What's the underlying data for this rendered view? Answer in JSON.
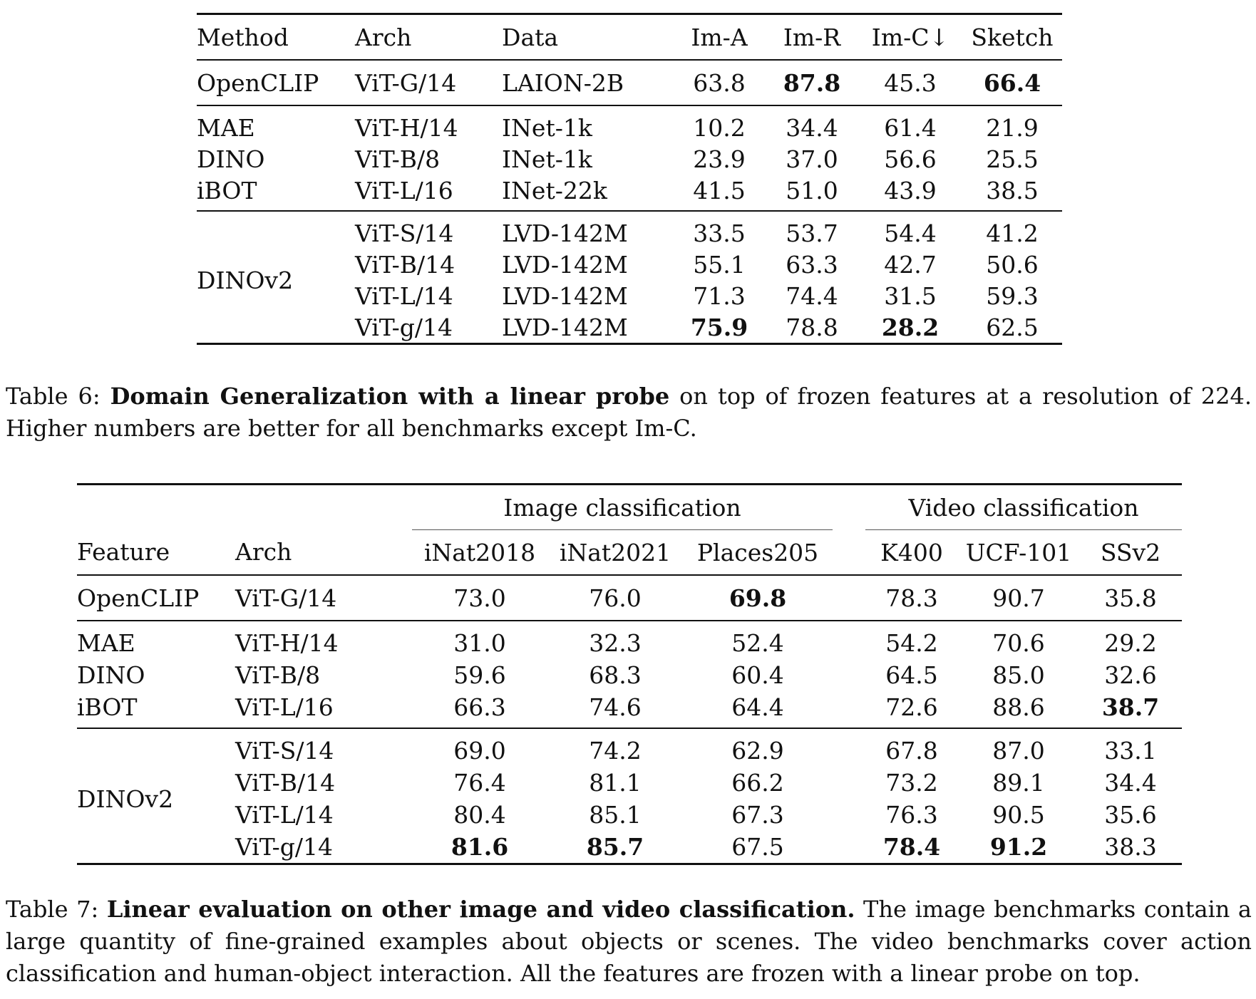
{
  "table6": {
    "headers": [
      "Method",
      "Arch",
      "Data",
      "Im-A",
      "Im-R",
      "Im-C↓",
      "Sketch"
    ],
    "rows": [
      {
        "method": "OpenCLIP",
        "arch": "ViT-G/14",
        "data": "LAION-2B",
        "im_a": "63.8",
        "im_r": "87.8",
        "im_c": "45.3",
        "sketch": "66.4"
      },
      {
        "method": "MAE",
        "arch": "ViT-H/14",
        "data": "INet-1k",
        "im_a": "10.2",
        "im_r": "34.4",
        "im_c": "61.4",
        "sketch": "21.9"
      },
      {
        "method": "DINO",
        "arch": "ViT-B/8",
        "data": "INet-1k",
        "im_a": "23.9",
        "im_r": "37.0",
        "im_c": "56.6",
        "sketch": "25.5"
      },
      {
        "method": "iBOT",
        "arch": "ViT-L/16",
        "data": "INet-22k",
        "im_a": "41.5",
        "im_r": "51.0",
        "im_c": "43.9",
        "sketch": "38.5"
      },
      {
        "method": "DINOv2",
        "arch": "ViT-S/14",
        "data": "LVD-142M",
        "im_a": "33.5",
        "im_r": "53.7",
        "im_c": "54.4",
        "sketch": "41.2"
      },
      {
        "method": "",
        "arch": "ViT-B/14",
        "data": "LVD-142M",
        "im_a": "55.1",
        "im_r": "63.3",
        "im_c": "42.7",
        "sketch": "50.6"
      },
      {
        "method": "",
        "arch": "ViT-L/14",
        "data": "LVD-142M",
        "im_a": "71.3",
        "im_r": "74.4",
        "im_c": "31.5",
        "sketch": "59.3"
      },
      {
        "method": "",
        "arch": "ViT-g/14",
        "data": "LVD-142M",
        "im_a": "75.9",
        "im_r": "78.8",
        "im_c": "28.2",
        "sketch": "62.5"
      }
    ],
    "caption_label": "Table 6: ",
    "caption_bold": "Domain Generalization with a linear probe",
    "caption_rest": " on top of frozen features at a resolution of 224. Higher numbers are better for all benchmarks except Im-C."
  },
  "table7": {
    "group_headers": [
      "Image classification",
      "Video classification"
    ],
    "headers": [
      "Feature",
      "Arch",
      "iNat2018",
      "iNat2021",
      "Places205",
      "K400",
      "UCF-101",
      "SSv2"
    ],
    "rows": [
      {
        "feature": "OpenCLIP",
        "arch": "ViT-G/14",
        "inat2018": "73.0",
        "inat2021": "76.0",
        "places205": "69.8",
        "k400": "78.3",
        "ucf101": "90.7",
        "ssv2": "35.8"
      },
      {
        "feature": "MAE",
        "arch": "ViT-H/14",
        "inat2018": "31.0",
        "inat2021": "32.3",
        "places205": "52.4",
        "k400": "54.2",
        "ucf101": "70.6",
        "ssv2": "29.2"
      },
      {
        "feature": "DINO",
        "arch": "ViT-B/8",
        "inat2018": "59.6",
        "inat2021": "68.3",
        "places205": "60.4",
        "k400": "64.5",
        "ucf101": "85.0",
        "ssv2": "32.6"
      },
      {
        "feature": "iBOT",
        "arch": "ViT-L/16",
        "inat2018": "66.3",
        "inat2021": "74.6",
        "places205": "64.4",
        "k400": "72.6",
        "ucf101": "88.6",
        "ssv2": "38.7"
      },
      {
        "feature": "DINOv2",
        "arch": "ViT-S/14",
        "inat2018": "69.0",
        "inat2021": "74.2",
        "places205": "62.9",
        "k400": "67.8",
        "ucf101": "87.0",
        "ssv2": "33.1"
      },
      {
        "feature": "",
        "arch": "ViT-B/14",
        "inat2018": "76.4",
        "inat2021": "81.1",
        "places205": "66.2",
        "k400": "73.2",
        "ucf101": "89.1",
        "ssv2": "34.4"
      },
      {
        "feature": "",
        "arch": "ViT-L/14",
        "inat2018": "80.4",
        "inat2021": "85.1",
        "places205": "67.3",
        "k400": "76.3",
        "ucf101": "90.5",
        "ssv2": "35.6"
      },
      {
        "feature": "",
        "arch": "ViT-g/14",
        "inat2018": "81.6",
        "inat2021": "85.7",
        "places205": "67.5",
        "k400": "78.4",
        "ucf101": "91.2",
        "ssv2": "38.3"
      }
    ],
    "caption_label": "Table 7: ",
    "caption_bold": "Linear evaluation on other image and video classification.",
    "caption_rest": " The image benchmarks contain a large quantity of fine-grained examples about objects or scenes. The video benchmarks cover action classification and human-object interaction. All the features are frozen with a linear probe on top."
  }
}
